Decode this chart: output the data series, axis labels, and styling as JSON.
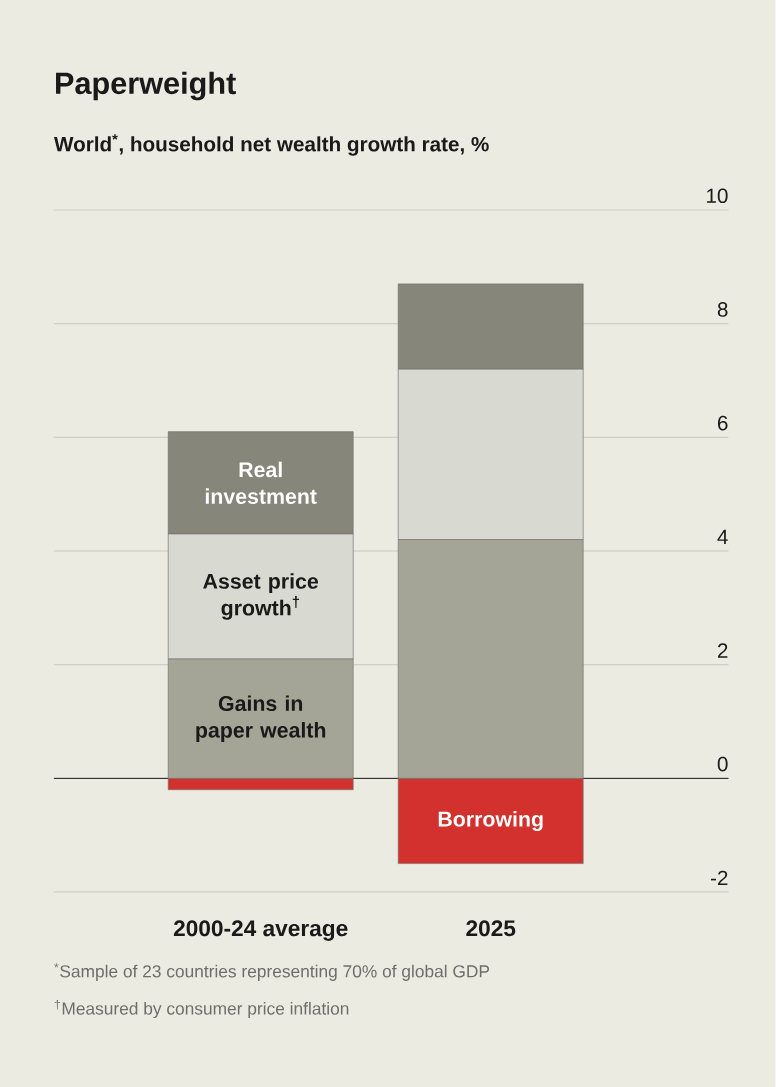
{
  "chart_data": {
    "type": "bar",
    "title": "Paperweight",
    "subtitle": "World$^{*}$, household net wealth growth rate, %",
    "categories": [
      "2000-24 average",
      "2025"
    ],
    "series": [
      {
        "name": "Gains in paper wealth",
        "color": "#a5a597",
        "values": [
          2.1,
          4.2
        ]
      },
      {
        "name": "Asset price growth$^{†}$",
        "color": "#d8d9d0",
        "values": [
          2.2,
          3.0
        ]
      },
      {
        "name": "Real investment",
        "color": "#86867a",
        "values": [
          1.8,
          1.5
        ]
      },
      {
        "name": "Borrowing",
        "color": "#d3312e",
        "values": [
          -0.2,
          -1.5
        ]
      }
    ],
    "stacked": true,
    "ylim": [
      -2,
      10
    ],
    "yticks": [
      -2,
      0,
      2,
      4,
      6,
      8,
      10
    ],
    "grid": "y",
    "annotations": [
      "$^{*}$Sample of 23 countries representing 70% of global GDP",
      "$^{†}$Measured by consumer price inflation"
    ]
  }
}
